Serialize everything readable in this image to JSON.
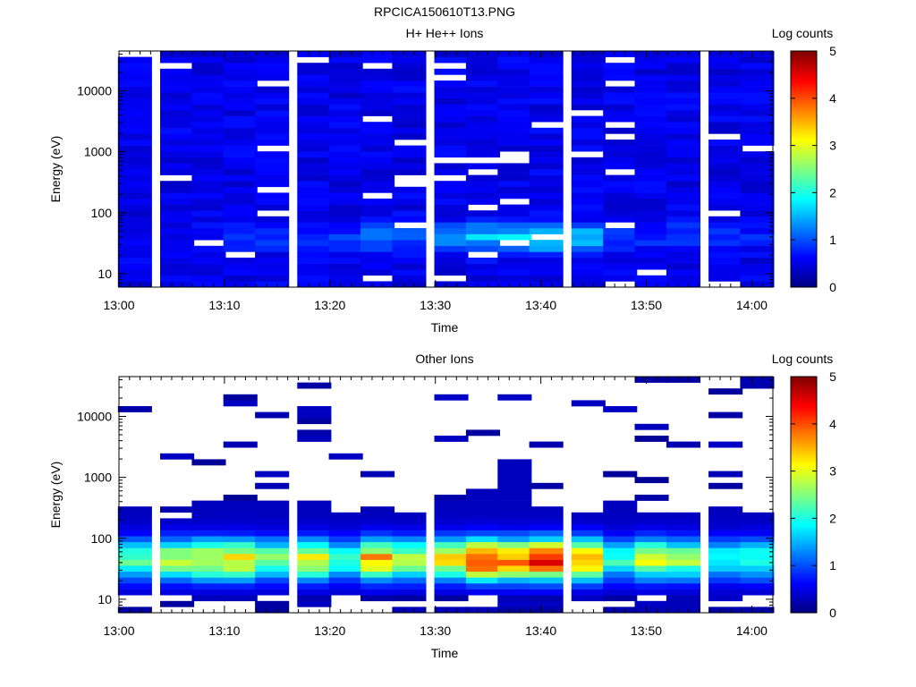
{
  "figure_title": "RPCICA150610T13.PNG",
  "chart_data": [
    {
      "type": "heatmap",
      "title": "H+ He++ Ions",
      "xlabel": "Time",
      "ylabel": "Energy (eV)",
      "x_range": [
        "13:00",
        "14:02"
      ],
      "x_ticks": [
        "13:00",
        "13:10",
        "13:20",
        "13:30",
        "13:40",
        "13:50",
        "14:00"
      ],
      "y_scale": "log",
      "y_range": [
        6,
        45000
      ],
      "y_ticks": [
        "10",
        "100",
        "1000",
        "10000"
      ],
      "colorbar": {
        "label": "Log counts",
        "range": [
          0,
          5
        ],
        "ticks": [
          "0",
          "1",
          "2",
          "3",
          "4",
          "5"
        ]
      },
      "time_bins": [
        "13:01",
        "13:05",
        "13:08",
        "13:11",
        "13:14",
        "13:18",
        "13:21",
        "13:24",
        "13:27",
        "13:31",
        "13:34",
        "13:37",
        "13:40",
        "13:44",
        "13:47",
        "13:50",
        "13:53",
        "13:57",
        "14:00"
      ],
      "peak_log_counts_by_time": [
        0.7,
        0.7,
        0.8,
        0.9,
        1.0,
        0.9,
        1.0,
        1.5,
        1.3,
        1.6,
        2.0,
        2.2,
        2.4,
        1.9,
        1.2,
        1.0,
        1.1,
        1.0,
        0.9
      ],
      "peak_energy_eV": 40
    },
    {
      "type": "heatmap",
      "title": "Other Ions",
      "xlabel": "Time",
      "ylabel": "Energy (eV)",
      "x_range": [
        "13:00",
        "14:02"
      ],
      "x_ticks": [
        "13:00",
        "13:10",
        "13:20",
        "13:30",
        "13:40",
        "13:50",
        "14:00"
      ],
      "y_scale": "log",
      "y_range": [
        6,
        45000
      ],
      "y_ticks": [
        "10",
        "100",
        "1000",
        "10000"
      ],
      "colorbar": {
        "label": "Log counts",
        "range": [
          0,
          5
        ],
        "ticks": [
          "0",
          "1",
          "2",
          "3",
          "4",
          "5"
        ]
      },
      "time_bins": [
        "13:01",
        "13:05",
        "13:08",
        "13:11",
        "13:14",
        "13:18",
        "13:21",
        "13:24",
        "13:27",
        "13:31",
        "13:34",
        "13:37",
        "13:40",
        "13:44",
        "13:47",
        "13:50",
        "13:53",
        "13:57",
        "14:00"
      ],
      "peak_log_counts_by_time": [
        2.3,
        2.8,
        3.1,
        3.3,
        2.6,
        3.2,
        2.0,
        3.6,
        2.9,
        3.4,
        4.4,
        4.0,
        4.6,
        3.8,
        2.0,
        3.0,
        2.6,
        1.8,
        2.1
      ],
      "peak_energy_eV": 45,
      "upper_energy_edge_eV": [
        350,
        230,
        400,
        380,
        420,
        420,
        280,
        250,
        280,
        380,
        650,
        2000,
        350,
        280,
        380,
        280,
        290,
        300,
        250
      ]
    }
  ]
}
